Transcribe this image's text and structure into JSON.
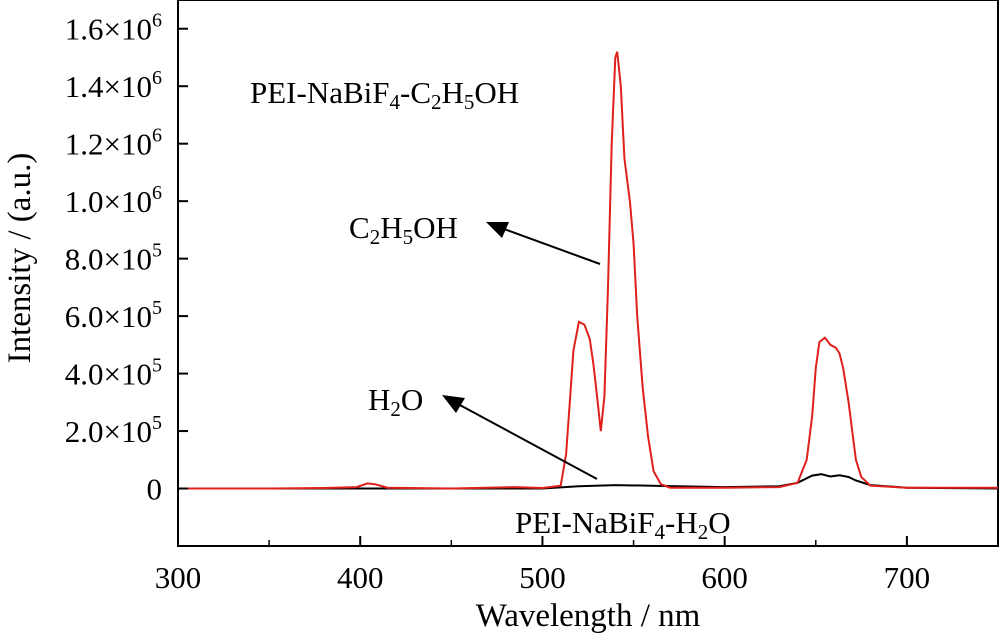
{
  "chart_data": {
    "type": "line",
    "xlabel": "Wavelength / nm",
    "ylabel": "Intensity / (a.u.)",
    "xlim": [
      300,
      750
    ],
    "ylim": [
      -200000,
      1700000
    ],
    "xticks": [
      300,
      400,
      500,
      600,
      700
    ],
    "xtick_labels": [
      "300",
      "400",
      "500",
      "600",
      "700"
    ],
    "yticks": [
      0,
      200000,
      400000,
      600000,
      800000,
      1000000,
      1200000,
      1400000,
      1600000
    ],
    "ytick_labels": [
      {
        "base": "0",
        "exp": ""
      },
      {
        "base": "2.0×10",
        "exp": "5"
      },
      {
        "base": "4.0×10",
        "exp": "5"
      },
      {
        "base": "6.0×10",
        "exp": "5"
      },
      {
        "base": "8.0×10",
        "exp": "5"
      },
      {
        "base": "1.0×10",
        "exp": "6"
      },
      {
        "base": "1.2×10",
        "exp": "6"
      },
      {
        "base": "1.4×10",
        "exp": "6"
      },
      {
        "base": "1.6×10",
        "exp": "6"
      }
    ],
    "grid": false,
    "legend": "none",
    "series": [
      {
        "label_id": "ethanol",
        "color": "#e0201b",
        "x": [
          300,
          350,
          380,
          398,
          404,
          408,
          415,
          450,
          485,
          500,
          510,
          513,
          515,
          517,
          520,
          523,
          526,
          528,
          530,
          532,
          534,
          536,
          538,
          540,
          541,
          543,
          545,
          548,
          550,
          552,
          555,
          558,
          561,
          565,
          570,
          600,
          630,
          640,
          645,
          648,
          650,
          652,
          655,
          658,
          661,
          663,
          665,
          668,
          670,
          672,
          675,
          680,
          700,
          750
        ],
        "y": [
          0,
          0,
          2000,
          5000,
          18000,
          15000,
          3000,
          0,
          5000,
          2000,
          10000,
          120000,
          300000,
          480000,
          580000,
          570000,
          520000,
          430000,
          320000,
          200000,
          320000,
          700000,
          1200000,
          1500000,
          1520000,
          1400000,
          1150000,
          1000000,
          850000,
          600000,
          350000,
          180000,
          60000,
          15000,
          3000,
          3000,
          5000,
          20000,
          100000,
          250000,
          420000,
          510000,
          525000,
          500000,
          490000,
          470000,
          420000,
          300000,
          200000,
          100000,
          40000,
          10000,
          3000,
          3000
        ]
      },
      {
        "label_id": "water",
        "color": "#000000",
        "x": [
          300,
          400,
          500,
          520,
          540,
          560,
          600,
          630,
          640,
          648,
          653,
          658,
          663,
          668,
          672,
          680,
          700,
          750
        ],
        "y": [
          0,
          0,
          0,
          8000,
          12000,
          10000,
          5000,
          8000,
          20000,
          45000,
          50000,
          42000,
          46000,
          40000,
          28000,
          12000,
          3000,
          0
        ]
      }
    ],
    "annotations": {
      "title_base": "PEI-NaBiF",
      "title_sub1": "4",
      "title_mid": "-C",
      "title_sub2": "2",
      "title_h": "H",
      "title_sub3": "5",
      "title_end": "OH",
      "ethanol_c": "C",
      "ethanol_sub1": "2",
      "ethanol_h": "H",
      "ethanol_sub2": "5",
      "ethanol_end": "OH",
      "water_h": "H",
      "water_sub": "2",
      "water_end": "O",
      "bottom_base": "PEI-NaBiF",
      "bottom_sub1": "4",
      "bottom_mid": "-H",
      "bottom_sub2": "2",
      "bottom_end": "O"
    }
  }
}
